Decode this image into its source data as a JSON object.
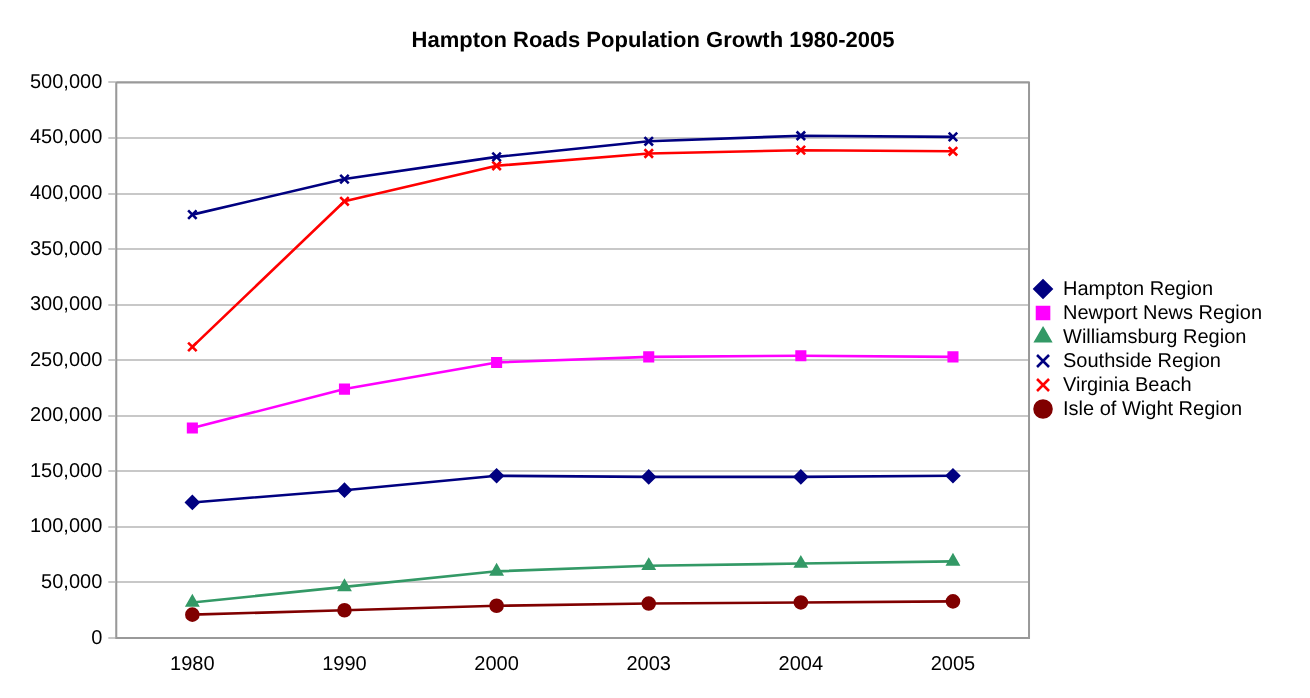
{
  "chart_data": {
    "type": "line",
    "title": "Hampton Roads Population Growth 1980-2005",
    "categories": [
      "1980",
      "1990",
      "2000",
      "2003",
      "2004",
      "2005"
    ],
    "ylim": [
      0,
      500000
    ],
    "yticks": [
      0,
      {
        "value": 50000,
        "label": "50,000"
      },
      {
        "value": 100000,
        "label": "100,000"
      },
      {
        "value": 150000,
        "label": "150,000"
      },
      {
        "value": 200000,
        "label": "200,000"
      },
      {
        "value": 250000,
        "label": "250,000"
      },
      {
        "value": 300000,
        "label": "300,000"
      },
      {
        "value": 350000,
        "label": "350,000"
      },
      {
        "value": 400000,
        "label": "400,000"
      },
      {
        "value": 450000,
        "label": "450,000"
      },
      {
        "value": 500000,
        "label": "500,000"
      }
    ],
    "grid": "y",
    "legend": "right",
    "line_style": "solid",
    "series": [
      {
        "name": "Hampton Region",
        "color": "#000080",
        "marker": "diamond",
        "values": [
          122000,
          133000,
          146000,
          145000,
          145000,
          146000
        ]
      },
      {
        "name": "Newport News Region",
        "color": "#ff00ff",
        "marker": "square",
        "values": [
          189000,
          224000,
          248000,
          253000,
          254000,
          253000
        ]
      },
      {
        "name": "Williamsburg Region",
        "color": "#339966",
        "marker": "triangle",
        "values": [
          32000,
          46000,
          60000,
          65000,
          67000,
          69000
        ]
      },
      {
        "name": "Southside Region",
        "color": "#000080",
        "marker": "cross",
        "values": [
          381000,
          413000,
          433000,
          447000,
          452000,
          451000
        ]
      },
      {
        "name": "Virginia Beach",
        "color": "#ff0000",
        "marker": "cross",
        "values": [
          262000,
          393000,
          425000,
          436000,
          439000,
          438000
        ]
      },
      {
        "name": "Isle of Wight Region",
        "color": "#800000",
        "marker": "circle",
        "values": [
          21000,
          25000,
          29000,
          31000,
          32000,
          33000
        ]
      }
    ]
  }
}
